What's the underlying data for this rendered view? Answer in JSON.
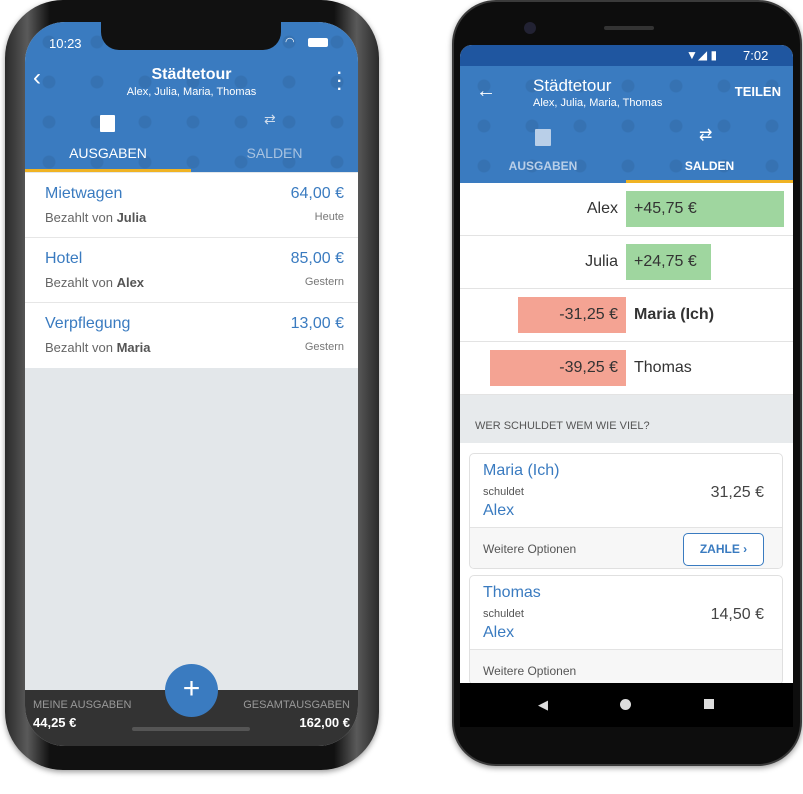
{
  "colors": {
    "primary": "#3a7bc0",
    "accent": "#f0b323",
    "positive": "#9fd69f",
    "negative": "#f4a393",
    "bottom_bar": "#333333"
  },
  "ios": {
    "status": {
      "time": "10:23"
    },
    "header": {
      "title": "Städtetour",
      "subtitle": "Alex, Julia, Maria, Thomas",
      "back_icon": "chevron-left",
      "menu_icon": "more-vertical"
    },
    "tabs": [
      {
        "label": "AUSGABEN",
        "icon": "receipt",
        "active": true
      },
      {
        "label": "SALDEN",
        "icon": "transfer-arrows",
        "active": false
      }
    ],
    "expenses": [
      {
        "title": "Mietwagen",
        "amount": "64,00 €",
        "paid_prefix": "Bezahlt von",
        "payer": "Julia",
        "date": "Heute"
      },
      {
        "title": "Hotel",
        "amount": "85,00 €",
        "paid_prefix": "Bezahlt von",
        "payer": "Alex",
        "date": "Gestern"
      },
      {
        "title": "Verpflegung",
        "amount": "13,00 €",
        "paid_prefix": "Bezahlt von",
        "payer": "Maria",
        "date": "Gestern"
      }
    ],
    "footer": {
      "my_label": "MEINE AUSGABEN",
      "my_value": "44,25 €",
      "total_label": "GESAMTAUSGABEN",
      "total_value": "162,00 €",
      "fab_icon": "plus"
    }
  },
  "android": {
    "status": {
      "time": "7:02"
    },
    "header": {
      "title": "Städtetour",
      "subtitle": "Alex, Julia, Maria, Thomas",
      "share": "TEILEN",
      "back_icon": "arrow-left"
    },
    "tabs": [
      {
        "label": "AUSGABEN",
        "icon": "receipt",
        "active": false
      },
      {
        "label": "SALDEN",
        "icon": "transfer-arrows",
        "active": true
      }
    ],
    "balances": [
      {
        "name": "Alex",
        "value": 45.75,
        "label": "+45,75 €",
        "bold": false
      },
      {
        "name": "Julia",
        "value": 24.75,
        "label": "+24,75 €",
        "bold": false
      },
      {
        "name": "Maria (Ich)",
        "value": -31.25,
        "label": "-31,25 €",
        "bold": true
      },
      {
        "name": "Thomas",
        "value": -39.25,
        "label": "-39,25 €",
        "bold": false
      }
    ],
    "section_title": "WER SCHULDET WEM WIE VIEL?",
    "debts": [
      {
        "from": "Maria (Ich)",
        "verb": "schuldet",
        "to": "Alex",
        "amount": "31,25 €",
        "options": "Weitere Optionen",
        "pay": "ZAHLE"
      },
      {
        "from": "Thomas",
        "verb": "schuldet",
        "to": "Alex",
        "amount": "14,50 €",
        "options": "Weitere Optionen"
      }
    ]
  }
}
